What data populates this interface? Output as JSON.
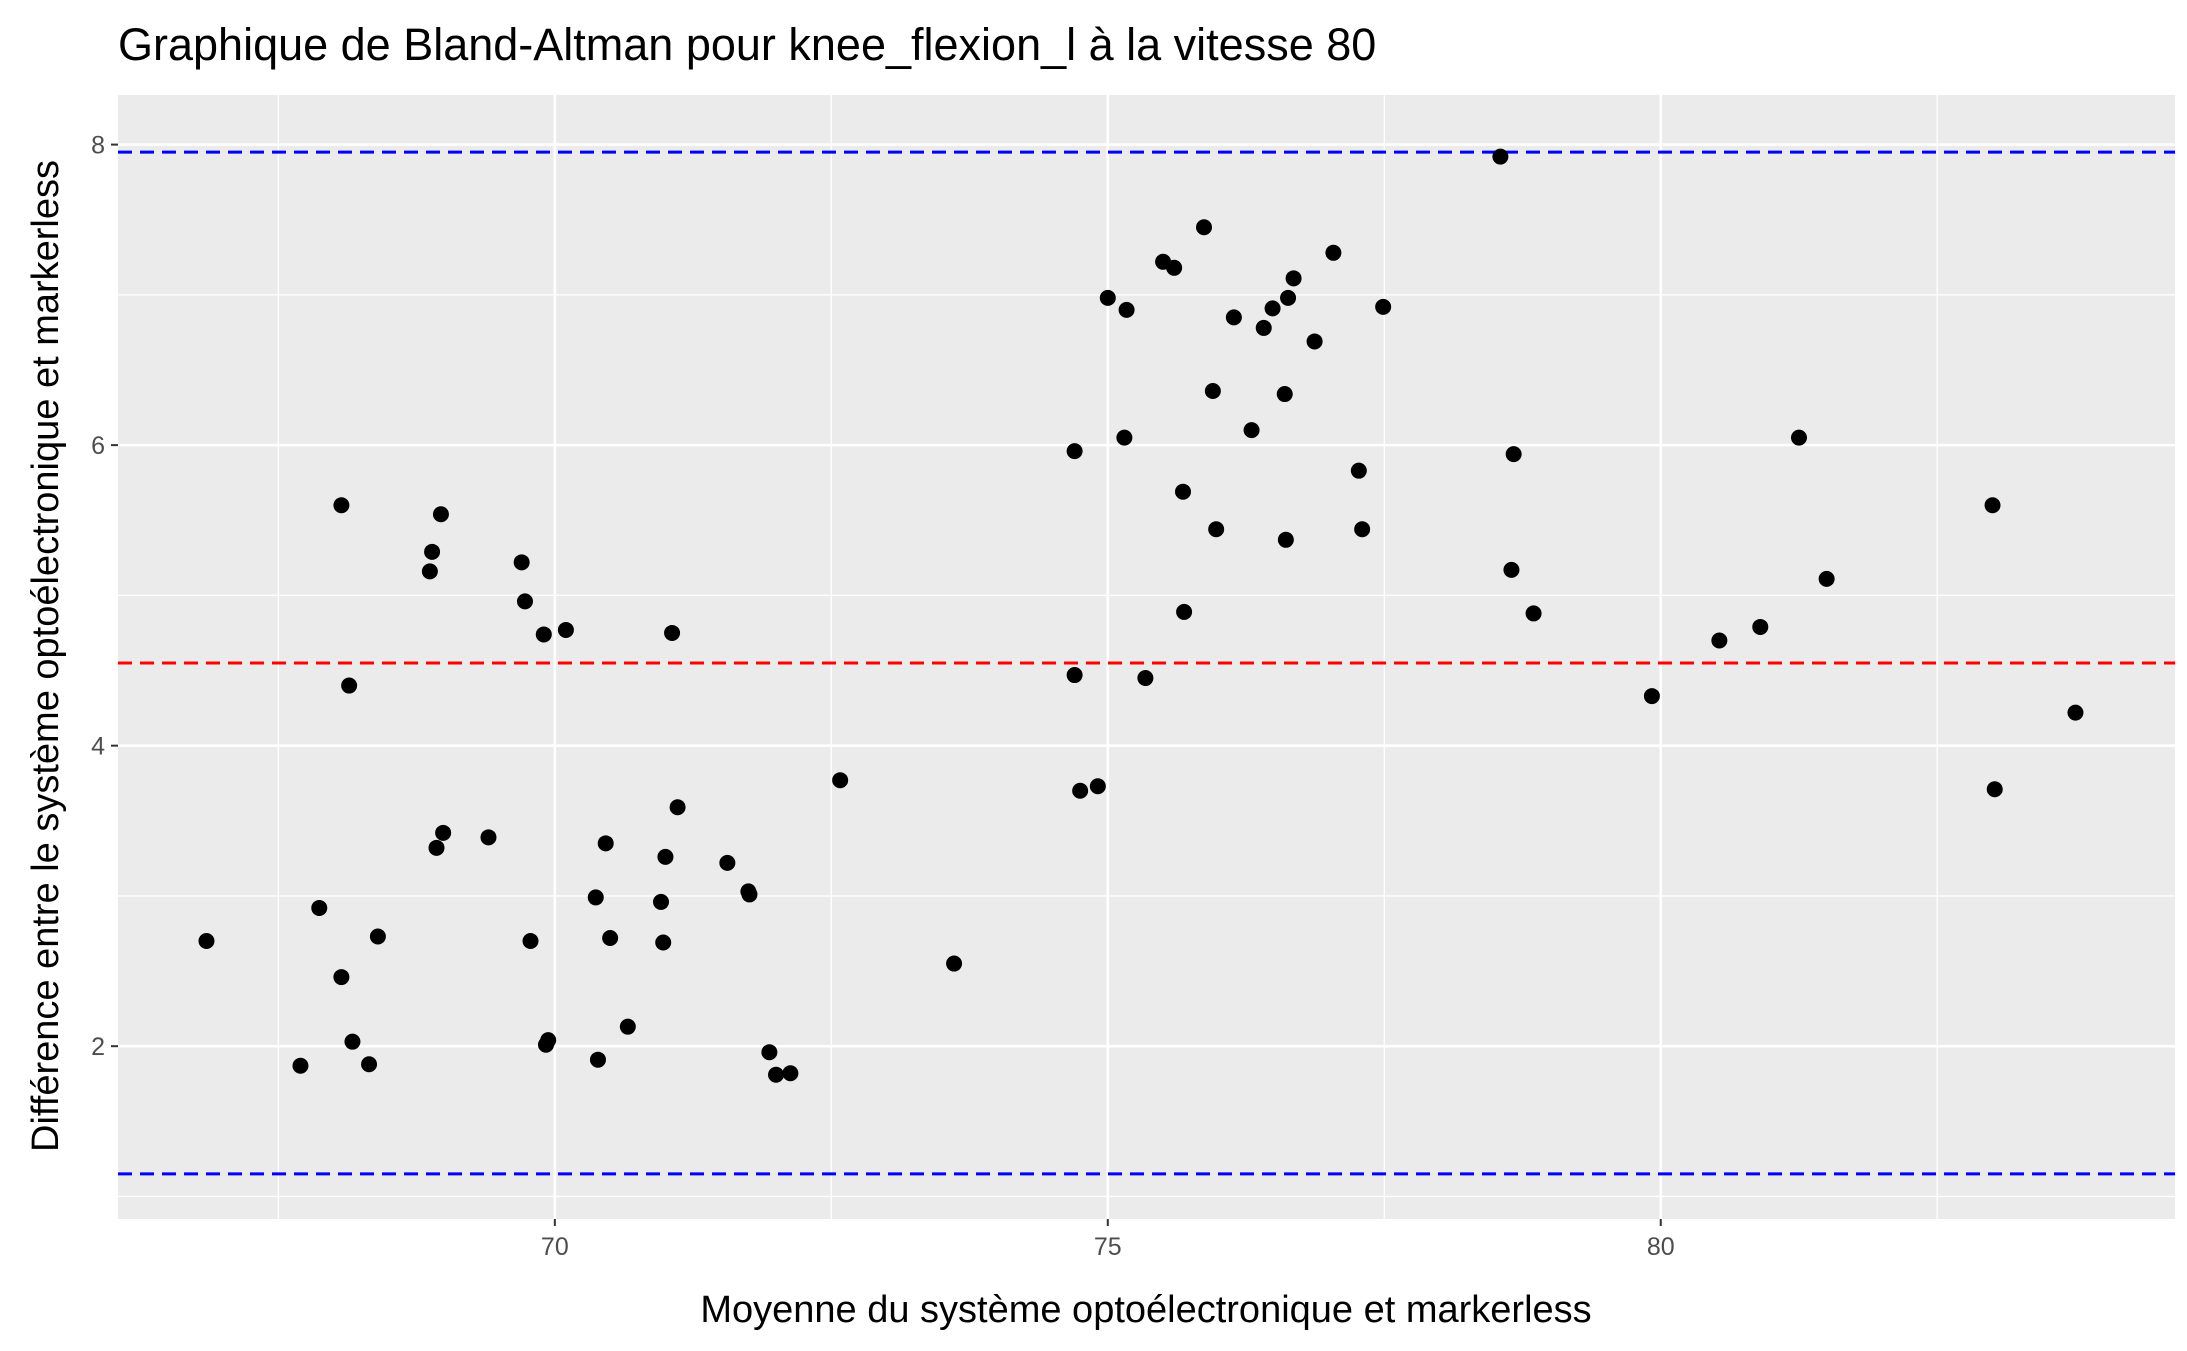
{
  "chart_data": {
    "type": "scatter",
    "title": "Graphique de Bland-Altman pour knee_flexion_l à la vitesse 80",
    "xlabel": "Moyenne du système optoélectronique et markerless",
    "ylabel": "Différence entre le système optoélectronique et markerless",
    "xlim": [
      66.05,
      84.65
    ],
    "ylim": [
      0.85,
      8.33
    ],
    "x_ticks": [
      70,
      75,
      80
    ],
    "y_ticks": [
      2,
      4,
      6,
      8
    ],
    "x_minor_ticks": [
      67.5,
      72.5,
      77.5,
      82.5
    ],
    "y_minor_ticks": [
      1,
      3,
      5,
      7
    ],
    "grid": true,
    "reference_lines": [
      {
        "y": 7.95,
        "style": "dashed",
        "color": "#0000ff"
      },
      {
        "y": 4.55,
        "style": "dashed",
        "color": "#ff0000"
      },
      {
        "y": 1.15,
        "style": "dashed",
        "color": "#0000ff"
      }
    ],
    "points": [
      [
        66.85,
        2.7
      ],
      [
        67.7,
        1.87
      ],
      [
        67.87,
        2.92
      ],
      [
        68.07,
        5.6
      ],
      [
        68.07,
        2.46
      ],
      [
        68.14,
        4.4
      ],
      [
        68.17,
        2.03
      ],
      [
        68.32,
        1.88
      ],
      [
        68.4,
        2.73
      ],
      [
        68.87,
        5.16
      ],
      [
        68.89,
        5.29
      ],
      [
        68.93,
        3.32
      ],
      [
        68.97,
        5.54
      ],
      [
        68.99,
        3.42
      ],
      [
        69.4,
        3.39
      ],
      [
        69.7,
        5.22
      ],
      [
        69.73,
        4.96
      ],
      [
        69.78,
        2.7
      ],
      [
        69.9,
        4.74
      ],
      [
        69.92,
        2.01
      ],
      [
        69.94,
        2.04
      ],
      [
        70.1,
        4.77
      ],
      [
        70.37,
        2.99
      ],
      [
        70.39,
        1.91
      ],
      [
        70.46,
        3.35
      ],
      [
        70.5,
        2.72
      ],
      [
        70.66,
        2.13
      ],
      [
        70.96,
        2.96
      ],
      [
        70.98,
        2.69
      ],
      [
        71.0,
        3.26
      ],
      [
        71.06,
        4.75
      ],
      [
        71.11,
        3.59
      ],
      [
        71.56,
        3.22
      ],
      [
        71.75,
        3.03
      ],
      [
        71.76,
        3.01
      ],
      [
        71.94,
        1.96
      ],
      [
        72.0,
        1.81
      ],
      [
        72.13,
        1.82
      ],
      [
        72.58,
        3.77
      ],
      [
        73.61,
        2.55
      ],
      [
        74.7,
        5.96
      ],
      [
        74.7,
        4.47
      ],
      [
        74.75,
        3.7
      ],
      [
        74.91,
        3.73
      ],
      [
        75.0,
        6.98
      ],
      [
        75.15,
        6.05
      ],
      [
        75.17,
        6.9
      ],
      [
        75.34,
        4.45
      ],
      [
        75.5,
        7.22
      ],
      [
        75.6,
        7.18
      ],
      [
        75.68,
        5.69
      ],
      [
        75.69,
        4.89
      ],
      [
        75.87,
        7.45
      ],
      [
        75.95,
        6.36
      ],
      [
        75.98,
        5.44
      ],
      [
        76.14,
        6.85
      ],
      [
        76.3,
        6.1
      ],
      [
        76.41,
        6.78
      ],
      [
        76.49,
        6.91
      ],
      [
        76.6,
        6.34
      ],
      [
        76.61,
        5.37
      ],
      [
        76.63,
        6.98
      ],
      [
        76.68,
        7.11
      ],
      [
        76.87,
        6.69
      ],
      [
        77.04,
        7.28
      ],
      [
        77.27,
        5.83
      ],
      [
        77.3,
        5.44
      ],
      [
        77.49,
        6.92
      ],
      [
        78.55,
        7.92
      ],
      [
        78.65,
        5.17
      ],
      [
        78.67,
        5.94
      ],
      [
        78.85,
        4.88
      ],
      [
        79.92,
        4.33
      ],
      [
        80.53,
        4.7
      ],
      [
        80.9,
        4.79
      ],
      [
        81.25,
        6.05
      ],
      [
        81.5,
        5.11
      ],
      [
        83.0,
        5.6
      ],
      [
        83.02,
        3.71
      ],
      [
        83.75,
        4.22
      ]
    ]
  }
}
